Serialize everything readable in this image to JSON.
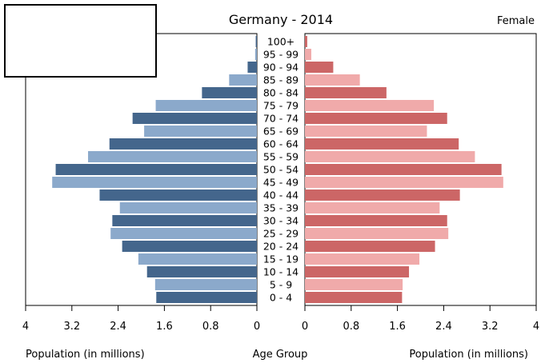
{
  "chart_data": {
    "type": "bar",
    "title": "Germany - 2014",
    "right_label": "Female",
    "center_label": "Age Group",
    "xlabel_left": "Population (in millions)",
    "xlabel_right": "Population (in millions)",
    "xlim": [
      0,
      4
    ],
    "xticks": [
      "4",
      "3.2",
      "2.4",
      "1.6",
      "0.8",
      "0",
      "0",
      "0.8",
      "1.6",
      "2.4",
      "3.2",
      "4"
    ],
    "categories": [
      "100+",
      "95 - 99",
      "90 - 94",
      "85 - 89",
      "80 - 84",
      "75 - 79",
      "70 - 74",
      "65 - 69",
      "60 - 64",
      "55 - 59",
      "50 - 54",
      "45 - 49",
      "40 - 44",
      "35 - 39",
      "30 - 34",
      "25 - 29",
      "20 - 24",
      "15 - 19",
      "10 - 14",
      "5 - 9",
      "0 - 4"
    ],
    "series": [
      {
        "side": "left",
        "colors": [
          "#44668c",
          "#8ba9cb"
        ],
        "values": [
          0.02,
          0.03,
          0.16,
          0.48,
          0.95,
          1.75,
          2.15,
          1.95,
          2.55,
          2.92,
          3.48,
          3.54,
          2.72,
          2.37,
          2.5,
          2.53,
          2.33,
          2.05,
          1.9,
          1.76,
          1.74
        ]
      },
      {
        "side": "right",
        "colors": [
          "#cc6666",
          "#f0aaaa"
        ],
        "values": [
          0.04,
          0.11,
          0.49,
          0.95,
          1.41,
          2.23,
          2.46,
          2.11,
          2.66,
          2.94,
          3.4,
          3.43,
          2.68,
          2.33,
          2.46,
          2.48,
          2.25,
          1.98,
          1.8,
          1.69,
          1.68
        ]
      }
    ],
    "grid": false
  }
}
